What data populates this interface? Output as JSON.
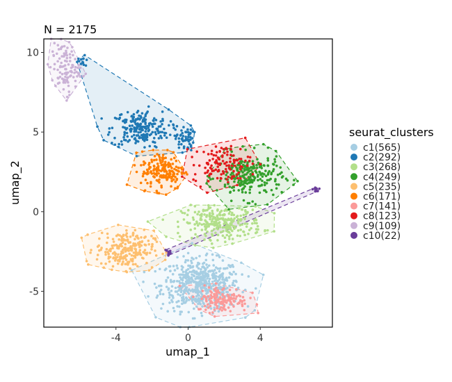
{
  "chart_data": {
    "type": "scatter",
    "title": "N = 2175",
    "xlabel": "umap_1",
    "ylabel": "umap_2",
    "xlim": [
      -8,
      8
    ],
    "ylim": [
      -7.25,
      10.85
    ],
    "xticks": [
      -4,
      0,
      4
    ],
    "yticks": [
      -5,
      0,
      5,
      10
    ],
    "grid": false,
    "hulls": "dashed outline, translucent fill per cluster",
    "legend": {
      "title": "seurat_clusters",
      "placement": "right"
    },
    "series": [
      {
        "name": "c1(565)",
        "count": 565,
        "color": "#A6CEE3",
        "regions": [
          [
            0.7,
            -4.6,
            1.1,
            0.8,
            1
          ]
        ]
      },
      {
        "name": "c2(292)",
        "count": 292,
        "color": "#1F78B4",
        "regions": [
          [
            -2.7,
            5.2,
            0.8,
            0.6,
            0.75
          ],
          [
            -0.2,
            4.6,
            0.25,
            0.4,
            0.2
          ],
          [
            -5.9,
            9.4,
            0.2,
            0.2,
            0.05
          ]
        ]
      },
      {
        "name": "c3(268)",
        "count": 268,
        "color": "#B2DF8A",
        "regions": [
          [
            1.9,
            -0.7,
            1.1,
            0.5,
            1
          ]
        ]
      },
      {
        "name": "c4(249)",
        "count": 249,
        "color": "#33A02C",
        "regions": [
          [
            3.4,
            2.2,
            0.9,
            0.7,
            1
          ]
        ]
      },
      {
        "name": "c5(235)",
        "count": 235,
        "color": "#FDBF6F",
        "regions": [
          [
            -3.5,
            -2.4,
            0.8,
            0.6,
            1
          ]
        ]
      },
      {
        "name": "c6(171)",
        "count": 171,
        "color": "#FF7F00",
        "regions": [
          [
            -1.4,
            2.6,
            0.6,
            0.6,
            1
          ]
        ]
      },
      {
        "name": "c7(141)",
        "count": 141,
        "color": "#FB9A99",
        "regions": [
          [
            1.9,
            -5.5,
            0.7,
            0.4,
            1
          ]
        ]
      },
      {
        "name": "c8(123)",
        "count": 123,
        "color": "#E31A1C",
        "regions": [
          [
            1.9,
            3.0,
            0.8,
            0.6,
            1
          ]
        ]
      },
      {
        "name": "c9(109)",
        "count": 109,
        "color": "#CAB2D6",
        "regions": [
          [
            -6.8,
            9.0,
            0.4,
            0.8,
            1
          ]
        ]
      },
      {
        "name": "c10(22)",
        "count": 22,
        "color": "#6A3D9A",
        "regions": [
          [
            -1.1,
            -2.6,
            0.1,
            0.15,
            0.5
          ],
          [
            7.1,
            1.4,
            0.1,
            0.1,
            0.5
          ]
        ]
      }
    ]
  }
}
